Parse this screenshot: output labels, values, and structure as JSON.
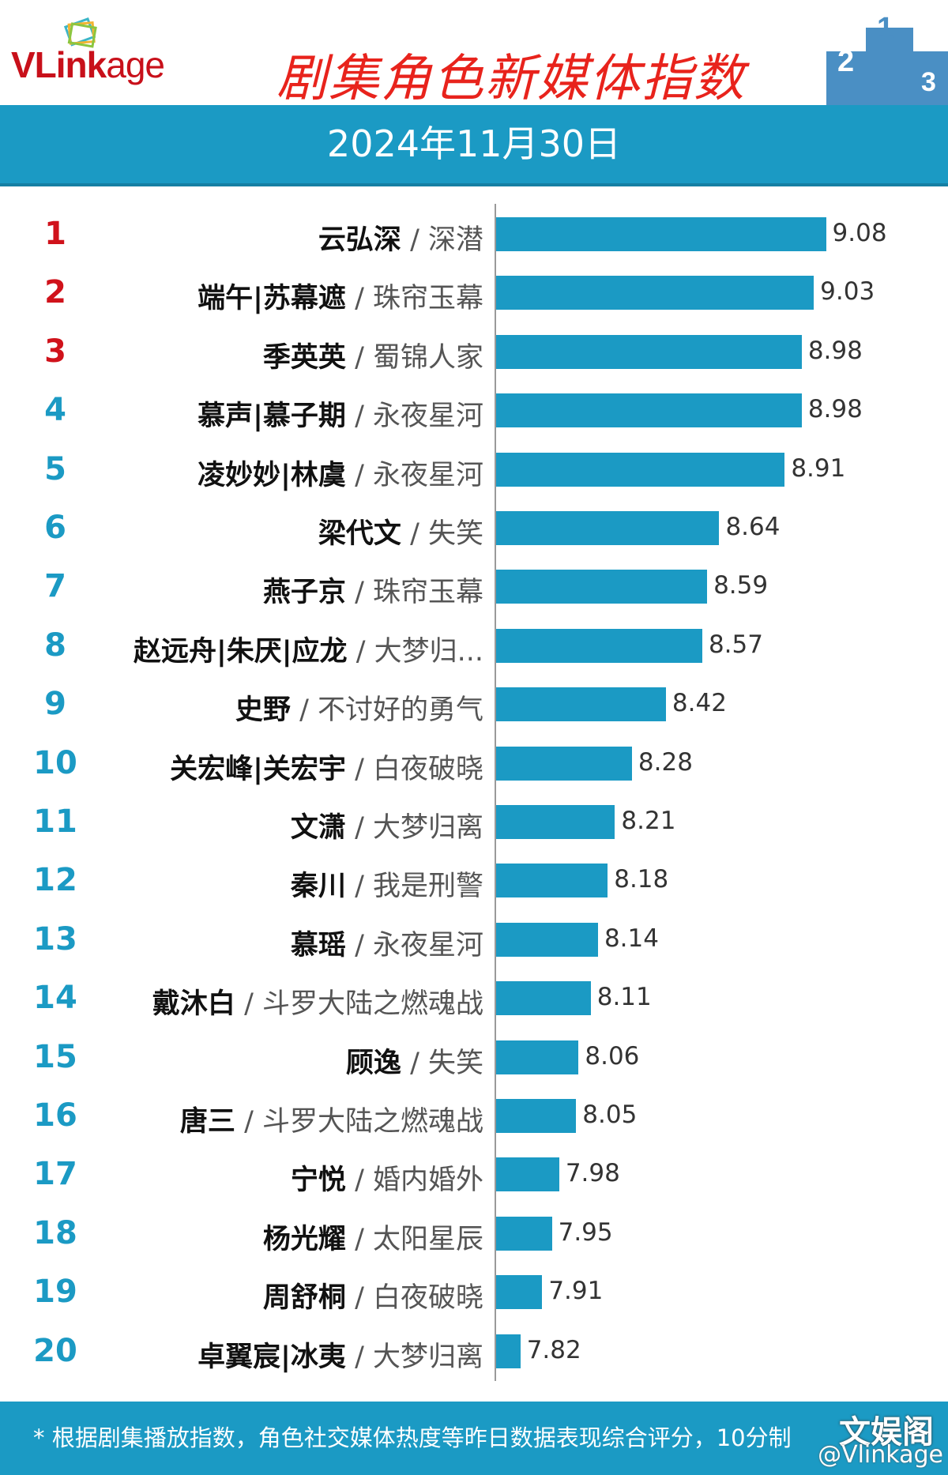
{
  "header": {
    "logo_text": "VLinkage",
    "title": "剧集角色新媒体指数",
    "date": "2024年11月30日"
  },
  "footer": {
    "note": "* 根据剧集播放指数，角色社交媒体热度等昨日数据表现综合评分，10分制",
    "watermark": "文娱阁",
    "weibo_handle": "@Vlinkage"
  },
  "colors": {
    "bar": "#1b9ac4",
    "top3_rank": "#d0121b",
    "rank": "#1b9ac4",
    "title": "#e8231c"
  },
  "chart_data": {
    "type": "bar",
    "orientation": "horizontal",
    "title": "剧集角色新媒体指数",
    "subtitle": "2024年11月30日",
    "categories": [
      {
        "rank": "1",
        "name": "云弘深",
        "show": "深潜"
      },
      {
        "rank": "2",
        "name": "端午|苏幕遮",
        "show": "珠帘玉幕"
      },
      {
        "rank": "3",
        "name": "季英英",
        "show": "蜀锦人家"
      },
      {
        "rank": "4",
        "name": "慕声|慕子期",
        "show": "永夜星河"
      },
      {
        "rank": "5",
        "name": "凌妙妙|林虞",
        "show": "永夜星河"
      },
      {
        "rank": "6",
        "name": "梁代文",
        "show": "失笑"
      },
      {
        "rank": "7",
        "name": "燕子京",
        "show": "珠帘玉幕"
      },
      {
        "rank": "8",
        "name": "赵远舟|朱厌|应龙",
        "show": "大梦归..."
      },
      {
        "rank": "9",
        "name": "史野",
        "show": "不讨好的勇气"
      },
      {
        "rank": "10",
        "name": "关宏峰|关宏宇",
        "show": "白夜破晓"
      },
      {
        "rank": "11",
        "name": "文潇",
        "show": "大梦归离"
      },
      {
        "rank": "12",
        "name": "秦川",
        "show": "我是刑警"
      },
      {
        "rank": "13",
        "name": "慕瑶",
        "show": "永夜星河"
      },
      {
        "rank": "14",
        "name": "戴沐白",
        "show": "斗罗大陆之燃魂战"
      },
      {
        "rank": "15",
        "name": "顾逸",
        "show": "失笑"
      },
      {
        "rank": "16",
        "name": "唐三",
        "show": "斗罗大陆之燃魂战"
      },
      {
        "rank": "17",
        "name": "宁悦",
        "show": "婚内婚外"
      },
      {
        "rank": "18",
        "name": "杨光耀",
        "show": "太阳星辰"
      },
      {
        "rank": "19",
        "name": "周舒桐",
        "show": "白夜破晓"
      },
      {
        "rank": "20",
        "name": "卓翼宸|冰夷",
        "show": "大梦归离"
      }
    ],
    "values": [
      "9.08",
      "9.03",
      "8.98",
      "8.98",
      "8.91",
      "8.64",
      "8.59",
      "8.57",
      "8.42",
      "8.28",
      "8.21",
      "8.18",
      "8.14",
      "8.11",
      "8.06",
      "8.05",
      "7.98",
      "7.95",
      "7.91",
      "7.82"
    ],
    "xlim": [
      7.72,
      9.2
    ],
    "grid": false,
    "legend": "none"
  }
}
